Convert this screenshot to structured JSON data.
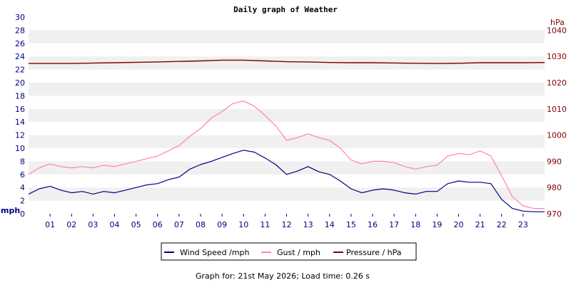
{
  "chart_data": {
    "type": "line",
    "title": "Daily graph of Weather",
    "left_axis": {
      "unit": "mph",
      "ylim": [
        0,
        30
      ],
      "ticks": [
        "0",
        "2",
        "4",
        "6",
        "8",
        "10",
        "12",
        "14",
        "16",
        "18",
        "20",
        "22",
        "24",
        "26",
        "28",
        "30"
      ]
    },
    "right_axis": {
      "unit": "hPa",
      "ylim": [
        970,
        1045
      ],
      "ticks": [
        "970",
        "980",
        "990",
        "1000",
        "1010",
        "1020",
        "1030",
        "1040"
      ]
    },
    "x_ticks": [
      "01",
      "02",
      "03",
      "04",
      "05",
      "06",
      "07",
      "08",
      "09",
      "10",
      "11",
      "12",
      "13",
      "14",
      "15",
      "16",
      "17",
      "18",
      "19",
      "20",
      "21",
      "22",
      "23"
    ],
    "xlim": [
      0,
      24
    ],
    "grid": "alternating-bands",
    "legend_position": "bottom",
    "series": [
      {
        "name": "Wind Speed /mph",
        "axis": "left",
        "color": "#000080",
        "x": [
          0,
          0.5,
          1,
          1.5,
          2,
          2.5,
          3,
          3.5,
          4,
          4.5,
          5,
          5.5,
          6,
          6.5,
          7,
          7.5,
          8,
          8.5,
          9,
          9.5,
          10,
          10.5,
          11,
          11.5,
          12,
          12.5,
          13,
          13.5,
          14,
          14.5,
          15,
          15.5,
          16,
          16.5,
          17,
          17.5,
          18,
          18.5,
          19,
          19.5,
          20,
          20.5,
          21,
          21.5,
          22,
          22.5,
          23,
          23.5,
          24
        ],
        "values": [
          3.0,
          3.8,
          4.2,
          3.6,
          3.2,
          3.4,
          3.0,
          3.4,
          3.2,
          3.6,
          4.0,
          4.4,
          4.6,
          5.2,
          5.6,
          6.8,
          7.5,
          8.0,
          8.6,
          9.2,
          9.7,
          9.4,
          8.5,
          7.5,
          6.0,
          6.5,
          7.2,
          6.4,
          6.0,
          5.0,
          3.8,
          3.2,
          3.6,
          3.8,
          3.6,
          3.2,
          3.0,
          3.4,
          3.4,
          4.6,
          5.0,
          4.8,
          4.8,
          4.6,
          2.2,
          0.8,
          0.4,
          0.3,
          0.3
        ]
      },
      {
        "name": "Gust / mph",
        "axis": "left",
        "color": "#ff82ac",
        "x": [
          0,
          0.5,
          1,
          1.5,
          2,
          2.5,
          3,
          3.5,
          4,
          4.5,
          5,
          5.5,
          6,
          6.5,
          7,
          7.5,
          8,
          8.5,
          9,
          9.5,
          10,
          10.5,
          11,
          11.5,
          12,
          12.5,
          13,
          13.5,
          14,
          14.5,
          15,
          15.5,
          16,
          16.5,
          17,
          17.5,
          18,
          18.5,
          19,
          19.5,
          20,
          20.5,
          21,
          21.5,
          22,
          22.5,
          23,
          23.5,
          24
        ],
        "values": [
          6.0,
          7.0,
          7.6,
          7.2,
          7.0,
          7.2,
          7.0,
          7.4,
          7.2,
          7.6,
          8.0,
          8.4,
          8.8,
          9.6,
          10.4,
          11.8,
          13.0,
          14.6,
          15.6,
          16.8,
          17.2,
          16.4,
          15.0,
          13.4,
          11.2,
          11.6,
          12.2,
          11.6,
          11.2,
          10.0,
          8.2,
          7.6,
          8.0,
          8.0,
          7.8,
          7.2,
          6.8,
          7.2,
          7.4,
          8.8,
          9.2,
          9.0,
          9.6,
          8.8,
          5.8,
          2.6,
          1.2,
          0.8,
          0.8
        ]
      },
      {
        "name": "Pressure / hPa",
        "axis": "right",
        "color": "#800000",
        "x": [
          0,
          2,
          4,
          6,
          8,
          9,
          10,
          11,
          12,
          13,
          14,
          15,
          16,
          17,
          18,
          19,
          20,
          21,
          22,
          23,
          24
        ],
        "values": [
          1027.3,
          1027.3,
          1027.6,
          1027.9,
          1028.3,
          1028.6,
          1028.6,
          1028.3,
          1028.0,
          1027.9,
          1027.7,
          1027.6,
          1027.6,
          1027.5,
          1027.4,
          1027.3,
          1027.4,
          1027.6,
          1027.6,
          1027.6,
          1027.7
        ]
      }
    ],
    "footer": "Graph for: 21st May 2026; Load time: 0.26 s"
  }
}
